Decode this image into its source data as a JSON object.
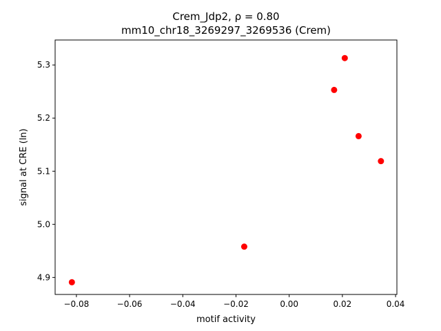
{
  "chart_data": {
    "type": "scatter",
    "title_line1": "Crem_Jdp2, ρ = 0.80",
    "title_line2": "mm10_chr18_3269297_3269536 (Crem)",
    "xlabel": "motif activity",
    "ylabel": "signal at CRE (ln)",
    "xlim": [
      -0.088,
      0.0405
    ],
    "ylim": [
      4.868,
      5.347
    ],
    "xticks": [
      -0.08,
      -0.06,
      -0.04,
      -0.02,
      0.0,
      0.02,
      0.04
    ],
    "xtick_labels": [
      "−0.08",
      "−0.06",
      "−0.04",
      "−0.02",
      "0.00",
      "0.02",
      "0.04"
    ],
    "yticks": [
      4.9,
      5.0,
      5.1,
      5.2,
      5.3
    ],
    "ytick_labels": [
      "4.9",
      "5.0",
      "5.1",
      "5.2",
      "5.3"
    ],
    "grid": false,
    "marker_color": "#ff0000",
    "x": [
      -0.0817,
      -0.0169,
      0.0169,
      0.0209,
      0.0261,
      0.0345
    ],
    "y": [
      4.891,
      4.958,
      5.253,
      5.313,
      5.166,
      5.119
    ]
  }
}
